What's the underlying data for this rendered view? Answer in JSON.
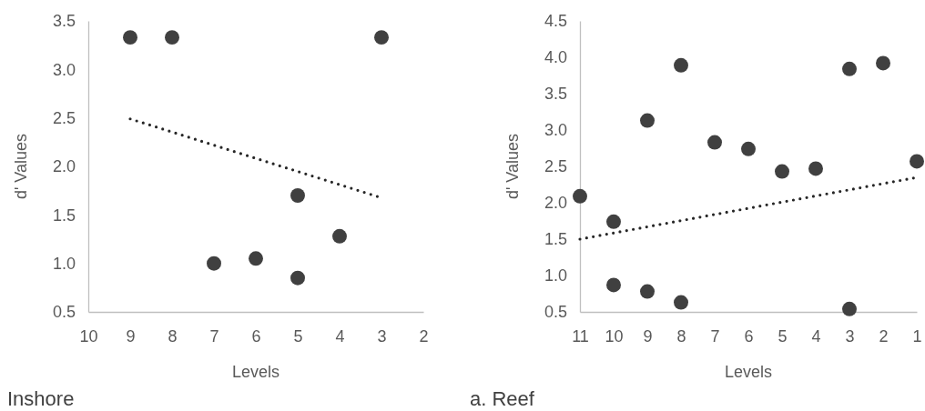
{
  "chart_data": [
    {
      "type": "scatter",
      "title": "Inshore",
      "xlabel": "Levels",
      "ylabel": "d' Values",
      "xlim": [
        10,
        2
      ],
      "xticks": [
        10,
        9,
        8,
        7,
        6,
        5,
        4,
        3,
        2
      ],
      "ylim": [
        0.5,
        3.5
      ],
      "yticks": [
        {
          "value": 0.5,
          "label": "0.5"
        },
        {
          "value": 1,
          "label": "1.0"
        },
        {
          "value": 1.5,
          "label": "1.5"
        },
        {
          "value": 2,
          "label": "2.0"
        },
        {
          "value": 2.5,
          "label": "2.5"
        },
        {
          "value": 3,
          "label": "3.0"
        },
        {
          "value": 3.5,
          "label": "3.5"
        }
      ],
      "grid": false,
      "series": [
        {
          "marker": "circle",
          "color": "#404040",
          "x": [
            9,
            8,
            3,
            5,
            4,
            7,
            6,
            5
          ],
          "values": [
            3.33,
            3.33,
            3.33,
            1.7,
            1.28,
            1.0,
            1.05,
            0.85
          ]
        },
        {
          "type": "line",
          "marker": "none",
          "color": "#262626",
          "line_style": "dotted",
          "x": [
            9,
            3.1
          ],
          "values": [
            2.49,
            1.69
          ]
        }
      ]
    },
    {
      "type": "scatter",
      "title": "a. Reef",
      "xlabel": "Levels",
      "ylabel": "d' Values",
      "xlim": [
        11,
        1
      ],
      "xticks": [
        11,
        10,
        9,
        8,
        7,
        6,
        5,
        4,
        3,
        2,
        1
      ],
      "ylim": [
        0.5,
        4.5
      ],
      "yticks": [
        {
          "value": 0.5,
          "label": "0.5"
        },
        {
          "value": 1,
          "label": "1.0"
        },
        {
          "value": 1.5,
          "label": "1.5"
        },
        {
          "value": 2,
          "label": "2.0"
        },
        {
          "value": 2.5,
          "label": "2.5"
        },
        {
          "value": 3,
          "label": "3.0"
        },
        {
          "value": 3.5,
          "label": "3.5"
        },
        {
          "value": 4,
          "label": "4.0"
        },
        {
          "value": 4.5,
          "label": "4.5"
        }
      ],
      "grid": false,
      "series": [
        {
          "marker": "circle",
          "color": "#404040",
          "x": [
            11,
            10,
            10,
            9,
            9,
            8,
            8,
            7,
            6,
            5,
            4,
            3,
            3,
            2,
            1
          ],
          "values": [
            2.09,
            1.74,
            0.87,
            3.13,
            0.78,
            3.89,
            0.63,
            2.83,
            2.74,
            2.43,
            2.47,
            3.84,
            0.54,
            3.92,
            2.57
          ]
        },
        {
          "type": "line",
          "marker": "none",
          "color": "#262626",
          "line_style": "dotted",
          "x": [
            11,
            1.1
          ],
          "values": [
            1.5,
            2.34
          ]
        }
      ]
    }
  ]
}
